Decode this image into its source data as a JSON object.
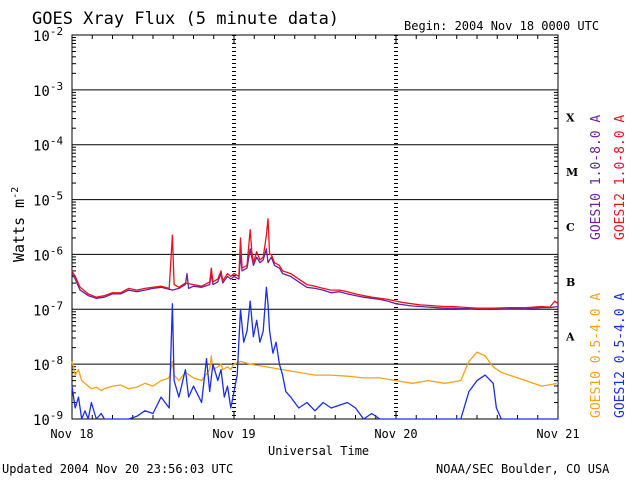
{
  "chart_data": {
    "type": "line",
    "title": "GOES Xray Flux (5 minute data)",
    "begin_label": "Begin:  2004 Nov 18 0000 UTC",
    "xlabel": "Universal Time",
    "ylabel_base": "Watts m",
    "ylabel_exp": "-2",
    "y_scale": "log",
    "ylim": [
      1e-09,
      0.01
    ],
    "xlim_days": [
      0,
      3
    ],
    "x_ticks": [
      {
        "day": 0,
        "label": "Nov 18"
      },
      {
        "day": 1,
        "label": "Nov 19"
      },
      {
        "day": 2,
        "label": "Nov 20"
      },
      {
        "day": 3,
        "label": "Nov 21"
      }
    ],
    "y_ticks": [
      {
        "value": -9,
        "label": "10",
        "exp": "-9"
      },
      {
        "value": -8,
        "label": "10",
        "exp": "-8"
      },
      {
        "value": -7,
        "label": "10",
        "exp": "-7"
      },
      {
        "value": -6,
        "label": "10",
        "exp": "-6"
      },
      {
        "value": -5,
        "label": "10",
        "exp": "-5"
      },
      {
        "value": -4,
        "label": "10",
        "exp": "-4"
      },
      {
        "value": -3,
        "label": "10",
        "exp": "-3"
      },
      {
        "value": -2,
        "label": "10",
        "exp": "-2"
      }
    ],
    "flare_classes": [
      {
        "label": "X",
        "log_value": -3.5
      },
      {
        "label": "M",
        "log_value": -4.5
      },
      {
        "label": "C",
        "log_value": -5.5
      },
      {
        "label": "B",
        "log_value": -6.5
      },
      {
        "label": "A",
        "log_value": -7.5
      }
    ],
    "series": [
      {
        "name": "GOES10 1.0-8.0 A",
        "color": "#6a1fa0",
        "points": [
          [
            0.0,
            -6.35
          ],
          [
            0.02,
            -6.45
          ],
          [
            0.05,
            -6.65
          ],
          [
            0.1,
            -6.75
          ],
          [
            0.15,
            -6.8
          ],
          [
            0.2,
            -6.78
          ],
          [
            0.25,
            -6.72
          ],
          [
            0.3,
            -6.72
          ],
          [
            0.35,
            -6.65
          ],
          [
            0.4,
            -6.68
          ],
          [
            0.45,
            -6.65
          ],
          [
            0.5,
            -6.62
          ],
          [
            0.55,
            -6.6
          ],
          [
            0.62,
            -6.65
          ],
          [
            0.66,
            -6.62
          ],
          [
            0.7,
            -6.55
          ],
          [
            0.71,
            -6.35
          ],
          [
            0.72,
            -6.62
          ],
          [
            0.75,
            -6.58
          ],
          [
            0.8,
            -6.6
          ],
          [
            0.85,
            -6.55
          ],
          [
            0.86,
            -6.35
          ],
          [
            0.87,
            -6.55
          ],
          [
            0.9,
            -6.5
          ],
          [
            0.92,
            -6.35
          ],
          [
            0.93,
            -6.52
          ],
          [
            0.96,
            -6.4
          ],
          [
            0.98,
            -6.45
          ],
          [
            1.0,
            -6.4
          ],
          [
            1.03,
            -6.45
          ],
          [
            1.04,
            -6.0
          ],
          [
            1.05,
            -6.3
          ],
          [
            1.08,
            -6.25
          ],
          [
            1.1,
            -5.9
          ],
          [
            1.12,
            -6.2
          ],
          [
            1.14,
            -6.05
          ],
          [
            1.16,
            -6.15
          ],
          [
            1.18,
            -6.1
          ],
          [
            1.2,
            -5.9
          ],
          [
            1.21,
            -6.15
          ],
          [
            1.23,
            -6.05
          ],
          [
            1.25,
            -6.2
          ],
          [
            1.28,
            -6.25
          ],
          [
            1.3,
            -6.35
          ],
          [
            1.35,
            -6.4
          ],
          [
            1.4,
            -6.5
          ],
          [
            1.45,
            -6.6
          ],
          [
            1.5,
            -6.62
          ],
          [
            1.55,
            -6.65
          ],
          [
            1.6,
            -6.7
          ],
          [
            1.65,
            -6.68
          ],
          [
            1.7,
            -6.72
          ],
          [
            1.75,
            -6.75
          ],
          [
            1.8,
            -6.78
          ],
          [
            1.85,
            -6.8
          ],
          [
            1.9,
            -6.82
          ],
          [
            1.95,
            -6.85
          ],
          [
            2.0,
            -6.9
          ],
          [
            2.05,
            -6.92
          ],
          [
            2.1,
            -6.94
          ],
          [
            2.15,
            -6.95
          ],
          [
            2.2,
            -6.96
          ],
          [
            2.25,
            -6.97
          ],
          [
            2.3,
            -6.98
          ],
          [
            2.35,
            -6.98
          ],
          [
            2.4,
            -6.99
          ],
          [
            2.45,
            -6.99
          ],
          [
            2.5,
            -7.0
          ],
          [
            2.6,
            -7.0
          ],
          [
            2.7,
            -6.99
          ],
          [
            2.8,
            -6.99
          ],
          [
            2.9,
            -6.97
          ],
          [
            2.95,
            -6.97
          ],
          [
            3.0,
            -6.95
          ]
        ]
      },
      {
        "name": "GOES12 1.0-8.0 A",
        "color": "#e8121e",
        "points": [
          [
            0.0,
            -6.3
          ],
          [
            0.02,
            -6.4
          ],
          [
            0.05,
            -6.6
          ],
          [
            0.1,
            -6.72
          ],
          [
            0.15,
            -6.78
          ],
          [
            0.2,
            -6.75
          ],
          [
            0.25,
            -6.7
          ],
          [
            0.3,
            -6.7
          ],
          [
            0.35,
            -6.62
          ],
          [
            0.4,
            -6.65
          ],
          [
            0.45,
            -6.62
          ],
          [
            0.5,
            -6.6
          ],
          [
            0.55,
            -6.58
          ],
          [
            0.6,
            -6.62
          ],
          [
            0.62,
            -5.65
          ],
          [
            0.63,
            -6.55
          ],
          [
            0.66,
            -6.6
          ],
          [
            0.7,
            -6.52
          ],
          [
            0.75,
            -6.55
          ],
          [
            0.8,
            -6.58
          ],
          [
            0.85,
            -6.5
          ],
          [
            0.86,
            -6.25
          ],
          [
            0.87,
            -6.5
          ],
          [
            0.9,
            -6.45
          ],
          [
            0.92,
            -6.3
          ],
          [
            0.93,
            -6.48
          ],
          [
            0.96,
            -6.35
          ],
          [
            0.98,
            -6.4
          ],
          [
            1.0,
            -6.35
          ],
          [
            1.03,
            -6.4
          ],
          [
            1.04,
            -5.7
          ],
          [
            1.05,
            -6.25
          ],
          [
            1.08,
            -6.2
          ],
          [
            1.1,
            -5.55
          ],
          [
            1.11,
            -5.95
          ],
          [
            1.12,
            -6.15
          ],
          [
            1.14,
            -5.95
          ],
          [
            1.16,
            -6.1
          ],
          [
            1.18,
            -6.05
          ],
          [
            1.2,
            -5.65
          ],
          [
            1.21,
            -5.35
          ],
          [
            1.22,
            -6.0
          ],
          [
            1.23,
            -6.0
          ],
          [
            1.25,
            -6.15
          ],
          [
            1.28,
            -6.2
          ],
          [
            1.3,
            -6.3
          ],
          [
            1.35,
            -6.35
          ],
          [
            1.4,
            -6.45
          ],
          [
            1.45,
            -6.55
          ],
          [
            1.5,
            -6.58
          ],
          [
            1.55,
            -6.62
          ],
          [
            1.6,
            -6.65
          ],
          [
            1.65,
            -6.65
          ],
          [
            1.7,
            -6.68
          ],
          [
            1.75,
            -6.72
          ],
          [
            1.8,
            -6.75
          ],
          [
            1.85,
            -6.78
          ],
          [
            1.9,
            -6.8
          ],
          [
            1.95,
            -6.82
          ],
          [
            2.0,
            -6.85
          ],
          [
            2.05,
            -6.88
          ],
          [
            2.1,
            -6.9
          ],
          [
            2.15,
            -6.92
          ],
          [
            2.2,
            -6.93
          ],
          [
            2.25,
            -6.94
          ],
          [
            2.3,
            -6.95
          ],
          [
            2.35,
            -6.95
          ],
          [
            2.4,
            -6.96
          ],
          [
            2.45,
            -6.97
          ],
          [
            2.5,
            -6.98
          ],
          [
            2.6,
            -6.98
          ],
          [
            2.7,
            -6.97
          ],
          [
            2.8,
            -6.97
          ],
          [
            2.9,
            -6.95
          ],
          [
            2.95,
            -6.96
          ],
          [
            2.98,
            -6.85
          ],
          [
            3.0,
            -6.9
          ]
        ]
      },
      {
        "name": "GOES10 0.5-4.0 A",
        "color": "#f5a314",
        "points": [
          [
            0.0,
            -7.95
          ],
          [
            0.02,
            -8.2
          ],
          [
            0.04,
            -8.1
          ],
          [
            0.06,
            -8.3
          ],
          [
            0.08,
            -8.35
          ],
          [
            0.1,
            -8.4
          ],
          [
            0.12,
            -8.45
          ],
          [
            0.15,
            -8.42
          ],
          [
            0.18,
            -8.48
          ],
          [
            0.2,
            -8.45
          ],
          [
            0.25,
            -8.4
          ],
          [
            0.3,
            -8.38
          ],
          [
            0.35,
            -8.45
          ],
          [
            0.4,
            -8.42
          ],
          [
            0.45,
            -8.35
          ],
          [
            0.5,
            -8.4
          ],
          [
            0.55,
            -8.3
          ],
          [
            0.6,
            -8.25
          ],
          [
            0.62,
            -7.95
          ],
          [
            0.63,
            -8.2
          ],
          [
            0.66,
            -8.3
          ],
          [
            0.7,
            -8.15
          ],
          [
            0.75,
            -8.25
          ],
          [
            0.8,
            -8.3
          ],
          [
            0.85,
            -8.1
          ],
          [
            0.86,
            -7.85
          ],
          [
            0.87,
            -8.1
          ],
          [
            0.9,
            -8.05
          ],
          [
            0.92,
            -8.0
          ],
          [
            0.93,
            -8.1
          ],
          [
            0.96,
            -8.05
          ],
          [
            0.98,
            -8.1
          ],
          [
            1.0,
            -8.0
          ],
          [
            1.04,
            -7.95
          ],
          [
            1.1,
            -8.0
          ],
          [
            1.2,
            -8.05
          ],
          [
            1.3,
            -8.1
          ],
          [
            1.4,
            -8.15
          ],
          [
            1.5,
            -8.2
          ],
          [
            1.6,
            -8.2
          ],
          [
            1.7,
            -8.22
          ],
          [
            1.8,
            -8.25
          ],
          [
            1.9,
            -8.25
          ],
          [
            2.0,
            -8.3
          ],
          [
            2.1,
            -8.35
          ],
          [
            2.2,
            -8.3
          ],
          [
            2.3,
            -8.35
          ],
          [
            2.4,
            -8.3
          ],
          [
            2.45,
            -7.95
          ],
          [
            2.5,
            -7.78
          ],
          [
            2.55,
            -7.85
          ],
          [
            2.6,
            -8.05
          ],
          [
            2.65,
            -8.15
          ],
          [
            2.7,
            -8.2
          ],
          [
            2.8,
            -8.3
          ],
          [
            2.9,
            -8.4
          ],
          [
            3.0,
            -8.35
          ]
        ]
      },
      {
        "name": "GOES12 0.5-4.0 A",
        "color": "#1a2ee6",
        "points": [
          [
            0.0,
            -8.4
          ],
          [
            0.02,
            -8.8
          ],
          [
            0.04,
            -8.6
          ],
          [
            0.06,
            -9.0
          ],
          [
            0.08,
            -8.85
          ],
          [
            0.1,
            -9.0
          ],
          [
            0.12,
            -8.7
          ],
          [
            0.15,
            -9.0
          ],
          [
            0.18,
            -8.9
          ],
          [
            0.2,
            -9.0
          ],
          [
            0.25,
            -9.0
          ],
          [
            0.3,
            -9.0
          ],
          [
            0.35,
            -9.0
          ],
          [
            0.4,
            -8.95
          ],
          [
            0.45,
            -8.85
          ],
          [
            0.5,
            -8.9
          ],
          [
            0.55,
            -8.6
          ],
          [
            0.6,
            -8.8
          ],
          [
            0.62,
            -6.9
          ],
          [
            0.63,
            -8.3
          ],
          [
            0.66,
            -8.6
          ],
          [
            0.7,
            -8.1
          ],
          [
            0.72,
            -8.6
          ],
          [
            0.75,
            -8.4
          ],
          [
            0.8,
            -8.7
          ],
          [
            0.83,
            -7.9
          ],
          [
            0.85,
            -8.5
          ],
          [
            0.87,
            -8.0
          ],
          [
            0.9,
            -8.3
          ],
          [
            0.92,
            -8.1
          ],
          [
            0.94,
            -8.6
          ],
          [
            0.96,
            -8.4
          ],
          [
            0.98,
            -8.8
          ],
          [
            1.0,
            -8.5
          ],
          [
            1.02,
            -8.2
          ],
          [
            1.04,
            -7.0
          ],
          [
            1.06,
            -7.6
          ],
          [
            1.08,
            -7.4
          ],
          [
            1.1,
            -6.85
          ],
          [
            1.12,
            -7.5
          ],
          [
            1.14,
            -7.2
          ],
          [
            1.16,
            -7.6
          ],
          [
            1.18,
            -7.4
          ],
          [
            1.2,
            -6.6
          ],
          [
            1.21,
            -6.9
          ],
          [
            1.22,
            -7.4
          ],
          [
            1.24,
            -7.8
          ],
          [
            1.26,
            -7.6
          ],
          [
            1.28,
            -8.0
          ],
          [
            1.3,
            -8.2
          ],
          [
            1.32,
            -8.5
          ],
          [
            1.35,
            -8.6
          ],
          [
            1.4,
            -8.8
          ],
          [
            1.45,
            -8.7
          ],
          [
            1.5,
            -8.85
          ],
          [
            1.55,
            -8.7
          ],
          [
            1.6,
            -8.8
          ],
          [
            1.65,
            -8.75
          ],
          [
            1.7,
            -8.7
          ],
          [
            1.75,
            -8.8
          ],
          [
            1.8,
            -9.0
          ],
          [
            1.85,
            -8.9
          ],
          [
            1.9,
            -9.0
          ],
          [
            2.0,
            -9.0
          ],
          [
            2.2,
            -9.0
          ],
          [
            2.4,
            -9.0
          ],
          [
            2.45,
            -8.5
          ],
          [
            2.5,
            -8.3
          ],
          [
            2.55,
            -8.2
          ],
          [
            2.6,
            -8.35
          ],
          [
            2.62,
            -8.8
          ],
          [
            2.65,
            -9.0
          ],
          [
            2.8,
            -9.0
          ],
          [
            3.0,
            -9.0
          ]
        ]
      }
    ]
  },
  "footer": {
    "updated": "Updated 2004 Nov 20 23:56:03 UTC",
    "source": "NOAA/SEC Boulder, CO USA"
  }
}
